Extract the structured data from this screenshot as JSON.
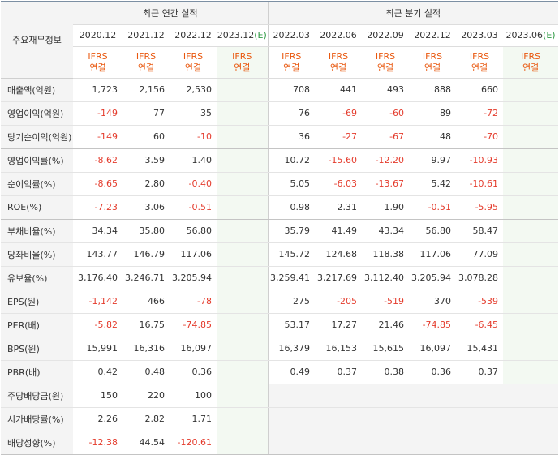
{
  "header": {
    "row_label": "주요재무정보",
    "annual_group": "최근 연간 실적",
    "quarter_group": "최근 분기 실적",
    "annual_periods": [
      {
        "label": "2020.12",
        "est": ""
      },
      {
        "label": "2021.12",
        "est": ""
      },
      {
        "label": "2022.12",
        "est": ""
      },
      {
        "label": "2023.12",
        "est": "(E)"
      }
    ],
    "quarter_periods": [
      {
        "label": "2022.03",
        "est": ""
      },
      {
        "label": "2022.06",
        "est": ""
      },
      {
        "label": "2022.09",
        "est": ""
      },
      {
        "label": "2022.12",
        "est": ""
      },
      {
        "label": "2023.03",
        "est": ""
      },
      {
        "label": "2023.06",
        "est": "(E)"
      }
    ],
    "ifrs_line1": "IFRS",
    "ifrs_line2": "연결"
  },
  "rows": [
    {
      "label": "매출액(억원)",
      "annual": [
        "1,723",
        "2,156",
        "2,530",
        ""
      ],
      "quarter": [
        "708",
        "441",
        "493",
        "888",
        "660",
        ""
      ]
    },
    {
      "label": "영업이익(억원)",
      "annual": [
        "-149",
        "77",
        "35",
        ""
      ],
      "quarter": [
        "76",
        "-69",
        "-60",
        "89",
        "-72",
        ""
      ]
    },
    {
      "label": "당기순이익(억원)",
      "annual": [
        "-149",
        "60",
        "-10",
        ""
      ],
      "quarter": [
        "36",
        "-27",
        "-67",
        "48",
        "-70",
        ""
      ]
    },
    {
      "label": "영업이익률(%)",
      "annual": [
        "-8.62",
        "3.59",
        "1.40",
        ""
      ],
      "quarter": [
        "10.72",
        "-15.60",
        "-12.20",
        "9.97",
        "-10.93",
        ""
      ]
    },
    {
      "label": "순이익률(%)",
      "annual": [
        "-8.65",
        "2.80",
        "-0.40",
        ""
      ],
      "quarter": [
        "5.05",
        "-6.03",
        "-13.67",
        "5.42",
        "-10.61",
        ""
      ]
    },
    {
      "label": "ROE(%)",
      "annual": [
        "-7.23",
        "3.06",
        "-0.51",
        ""
      ],
      "quarter": [
        "0.98",
        "2.31",
        "1.90",
        "-0.51",
        "-5.95",
        ""
      ]
    },
    {
      "label": "부채비율(%)",
      "annual": [
        "34.34",
        "35.80",
        "56.80",
        ""
      ],
      "quarter": [
        "35.79",
        "41.49",
        "43.34",
        "56.80",
        "58.47",
        ""
      ]
    },
    {
      "label": "당좌비율(%)",
      "annual": [
        "143.77",
        "146.79",
        "117.06",
        ""
      ],
      "quarter": [
        "145.72",
        "124.68",
        "118.38",
        "117.06",
        "77.09",
        ""
      ]
    },
    {
      "label": "유보율(%)",
      "annual": [
        "3,176.40",
        "3,246.71",
        "3,205.94",
        ""
      ],
      "quarter": [
        "3,259.41",
        "3,217.69",
        "3,112.40",
        "3,205.94",
        "3,078.28",
        ""
      ]
    },
    {
      "label": "EPS(원)",
      "annual": [
        "-1,142",
        "466",
        "-78",
        ""
      ],
      "quarter": [
        "275",
        "-205",
        "-519",
        "370",
        "-539",
        ""
      ]
    },
    {
      "label": "PER(배)",
      "annual": [
        "-5.82",
        "16.75",
        "-74.85",
        ""
      ],
      "quarter": [
        "53.17",
        "17.27",
        "21.46",
        "-74.85",
        "-6.45",
        ""
      ]
    },
    {
      "label": "BPS(원)",
      "annual": [
        "15,991",
        "16,316",
        "16,097",
        ""
      ],
      "quarter": [
        "16,379",
        "16,153",
        "15,615",
        "16,097",
        "15,431",
        ""
      ]
    },
    {
      "label": "PBR(배)",
      "annual": [
        "0.42",
        "0.48",
        "0.36",
        ""
      ],
      "quarter": [
        "0.49",
        "0.37",
        "0.38",
        "0.36",
        "0.37",
        ""
      ]
    },
    {
      "label": "주당배당금(원)",
      "annual": [
        "150",
        "220",
        "100",
        ""
      ],
      "quarter": [
        "",
        "",
        "",
        "",
        "",
        ""
      ]
    },
    {
      "label": "시가배당률(%)",
      "annual": [
        "2.26",
        "2.82",
        "1.71",
        ""
      ],
      "quarter": [
        "",
        "",
        "",
        "",
        "",
        ""
      ]
    },
    {
      "label": "배당성향(%)",
      "annual": [
        "-12.38",
        "44.54",
        "-120.61",
        ""
      ],
      "quarter": [
        "",
        "",
        "",
        "",
        "",
        ""
      ]
    }
  ]
}
